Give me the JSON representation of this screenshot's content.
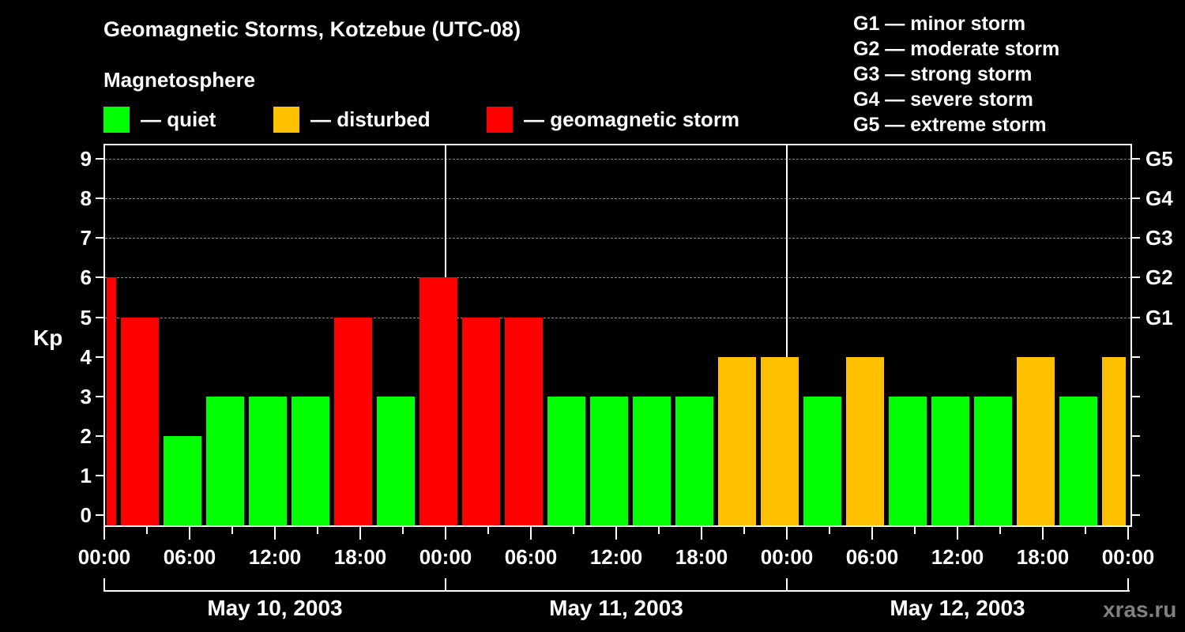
{
  "header": {
    "title": "Geomagnetic Storms, Kotzebue (UTC-08)",
    "subtitle": "Magnetosphere"
  },
  "legend": [
    {
      "label": "— quiet",
      "color": "#00ff00"
    },
    {
      "label": "— disturbed",
      "color": "#ffc000"
    },
    {
      "label": "— geomagnetic storm",
      "color": "#ff0000"
    }
  ],
  "g_legend": [
    "G1 — minor storm",
    "G2 — moderate storm",
    "G3 — strong storm",
    "G4 — severe storm",
    "G5 — extreme storm"
  ],
  "axes": {
    "ylabel": "Kp",
    "yticks": [
      "0",
      "1",
      "2",
      "3",
      "4",
      "5",
      "6",
      "7",
      "8",
      "9"
    ],
    "g_ticks": [
      {
        "label": "G1",
        "kp": 5
      },
      {
        "label": "G2",
        "kp": 6
      },
      {
        "label": "G3",
        "kp": 7
      },
      {
        "label": "G4",
        "kp": 8
      },
      {
        "label": "G5",
        "kp": 9
      }
    ],
    "xticks": [
      "00:00",
      "06:00",
      "12:00",
      "18:00",
      "00:00",
      "06:00",
      "12:00",
      "18:00",
      "00:00",
      "06:00",
      "12:00",
      "18:00",
      "00:00"
    ],
    "dates": [
      "May 10, 2003",
      "May 11, 2003",
      "May 12, 2003"
    ]
  },
  "watermark": "xras.ru",
  "chart_data": {
    "type": "bar",
    "title": "Geomagnetic Storms, Kotzebue (UTC-08)",
    "xlabel": "",
    "ylabel": "Kp",
    "ylim": [
      0,
      9
    ],
    "grid": "dashed horizontal at Kp 5-9",
    "legend": [
      "quiet",
      "disturbed",
      "geomagnetic storm"
    ],
    "bin_hours": 3,
    "note": "Bars are 3-hour Kp bins offset by 1h (UTC-08); first and last bins are partial.",
    "categories": [
      "May10 00-01",
      "May10 01-04",
      "May10 04-07",
      "May10 07-10",
      "May10 10-13",
      "May10 13-16",
      "May10 16-19",
      "May10 19-22",
      "May10 22-May11 01",
      "May11 01-04",
      "May11 04-07",
      "May11 07-10",
      "May11 10-13",
      "May11 13-16",
      "May11 16-19",
      "May11 19-22",
      "May11 22-May12 01",
      "May12 01-04",
      "May12 04-07",
      "May12 07-10",
      "May12 10-13",
      "May12 13-16",
      "May12 16-19",
      "May12 19-22",
      "May12 22-24"
    ],
    "values": [
      6,
      5,
      2,
      3,
      3,
      3,
      5,
      3,
      6,
      5,
      5,
      3,
      3,
      3,
      3,
      4,
      4,
      3,
      4,
      3,
      3,
      3,
      4,
      3,
      4
    ],
    "status": [
      "storm",
      "storm",
      "quiet",
      "quiet",
      "quiet",
      "quiet",
      "storm",
      "quiet",
      "storm",
      "storm",
      "storm",
      "quiet",
      "quiet",
      "quiet",
      "quiet",
      "disturbed",
      "disturbed",
      "quiet",
      "disturbed",
      "quiet",
      "quiet",
      "quiet",
      "disturbed",
      "quiet",
      "disturbed"
    ],
    "colors": {
      "quiet": "#00ff00",
      "disturbed": "#ffc000",
      "storm": "#ff0000"
    }
  }
}
